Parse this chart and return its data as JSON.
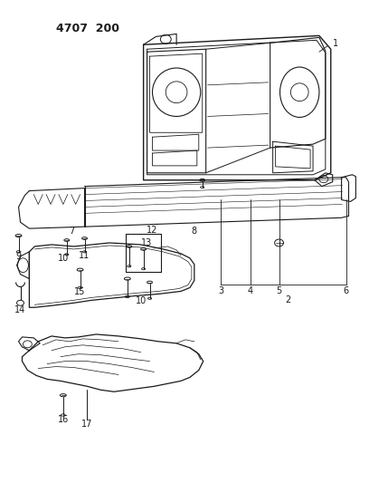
{
  "bg_color": "#ffffff",
  "lc": "#1a1a1a",
  "title": "4707  200",
  "fig_w": 4.08,
  "fig_h": 5.33,
  "dpi": 100
}
